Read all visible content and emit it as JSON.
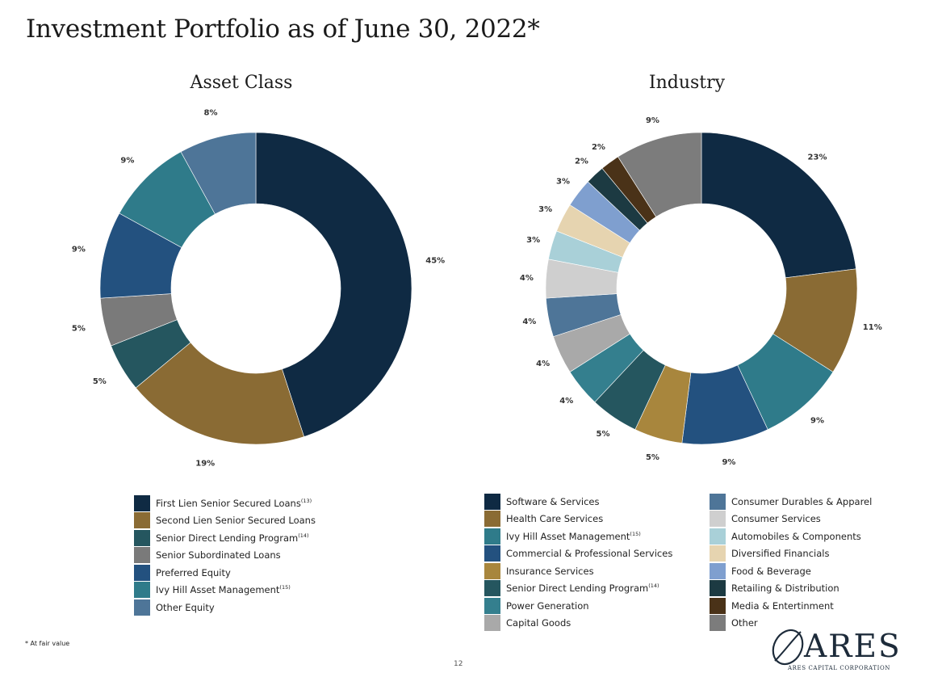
{
  "page": {
    "title": "Investment Portfolio as of June 30, 2022*",
    "footnote": "* At fair value",
    "page_number": "12",
    "logo_text": "ARES",
    "logo_subtext": "ARES CAPITAL CORPORATION"
  },
  "colors": {
    "navy": "#0f2a43",
    "gold": "#8a6b34",
    "dark_teal": "#25565f",
    "gray": "#7a7a7a",
    "blue": "#23517f",
    "teal": "#2f7b8a",
    "slate_blue": "#4e7598",
    "mustard": "#a8863d",
    "light_gray_stone": "#a9a9a9",
    "light_gray": "#cfcfcf",
    "pale_teal": "#a9d0d8",
    "tan": "#e6d4b0",
    "periwinkle": "#7f9fcf",
    "dark_green_slate": "#1c3a42",
    "dark_brown": "#4a3218",
    "mid_gray": "#7c7c7c"
  },
  "chart_data": [
    {
      "type": "pie",
      "variant": "donut",
      "title": "Asset Class",
      "start": "12 o'clock",
      "direction": "clockwise",
      "slices": [
        {
          "label": "First Lien Senior Secured Loans",
          "sup": "(13)",
          "value": 45,
          "value_label": "45%",
          "color": "#0f2a43"
        },
        {
          "label": "Second Lien Senior Secured Loans",
          "sup": "",
          "value": 19,
          "value_label": "19%",
          "color": "#8a6b34"
        },
        {
          "label": "Senior Direct Lending Program",
          "sup": "(14)",
          "value": 5,
          "value_label": "5%",
          "color": "#25565f"
        },
        {
          "label": "Senior Subordinated Loans",
          "sup": "",
          "value": 5,
          "value_label": "5%",
          "color": "#7a7a7a"
        },
        {
          "label": "Preferred Equity",
          "sup": "",
          "value": 9,
          "value_label": "9%",
          "color": "#23517f"
        },
        {
          "label": "Ivy Hill Asset Management",
          "sup": "(15)",
          "value": 9,
          "value_label": "9%",
          "color": "#2f7b8a"
        },
        {
          "label": "Other Equity",
          "sup": "",
          "value": 8,
          "value_label": "8%",
          "color": "#4e7598"
        }
      ]
    },
    {
      "type": "pie",
      "variant": "donut",
      "title": "Industry",
      "start": "12 o'clock",
      "direction": "clockwise",
      "slices": [
        {
          "label": "Software & Services",
          "sup": "",
          "value": 23,
          "value_label": "23%",
          "color": "#0f2a43"
        },
        {
          "label": "Health Care Services",
          "sup": "",
          "value": 11,
          "value_label": "11%",
          "color": "#8a6b34"
        },
        {
          "label": "Ivy Hill Asset Management",
          "sup": "(15)",
          "value": 9,
          "value_label": "9%",
          "color": "#2f7b8a"
        },
        {
          "label": "Commercial & Professional Services",
          "sup": "",
          "value": 9,
          "value_label": "9%",
          "color": "#23517f"
        },
        {
          "label": "Insurance Services",
          "sup": "",
          "value": 5,
          "value_label": "5%",
          "color": "#a8863d"
        },
        {
          "label": "Senior Direct Lending Program",
          "sup": "(14)",
          "value": 5,
          "value_label": "5%",
          "color": "#25565f"
        },
        {
          "label": "Power Generation",
          "sup": "",
          "value": 4,
          "value_label": "4%",
          "color": "#347f8e"
        },
        {
          "label": "Capital Goods",
          "sup": "",
          "value": 4,
          "value_label": "4%",
          "color": "#a9a9a9"
        },
        {
          "label": "Consumer Durables & Apparel",
          "sup": "",
          "value": 4,
          "value_label": "4%",
          "color": "#4e7598"
        },
        {
          "label": "Consumer Services",
          "sup": "",
          "value": 4,
          "value_label": "4%",
          "color": "#cfcfcf"
        },
        {
          "label": "Automobiles & Components",
          "sup": "",
          "value": 3,
          "value_label": "3%",
          "color": "#a9d0d8"
        },
        {
          "label": "Diversified Financials",
          "sup": "",
          "value": 3,
          "value_label": "3%",
          "color": "#e6d4b0"
        },
        {
          "label": "Food & Beverage",
          "sup": "",
          "value": 3,
          "value_label": "3%",
          "color": "#7f9fcf"
        },
        {
          "label": "Retailing & Distribution",
          "sup": "",
          "value": 2,
          "value_label": "2%",
          "color": "#1c3a42"
        },
        {
          "label": "Media & Entertinment",
          "sup": "",
          "value": 2,
          "value_label": "2%",
          "color": "#4a3218"
        },
        {
          "label": "Other",
          "sup": "",
          "value": 9,
          "value_label": "9%",
          "color": "#7c7c7c"
        }
      ]
    }
  ]
}
